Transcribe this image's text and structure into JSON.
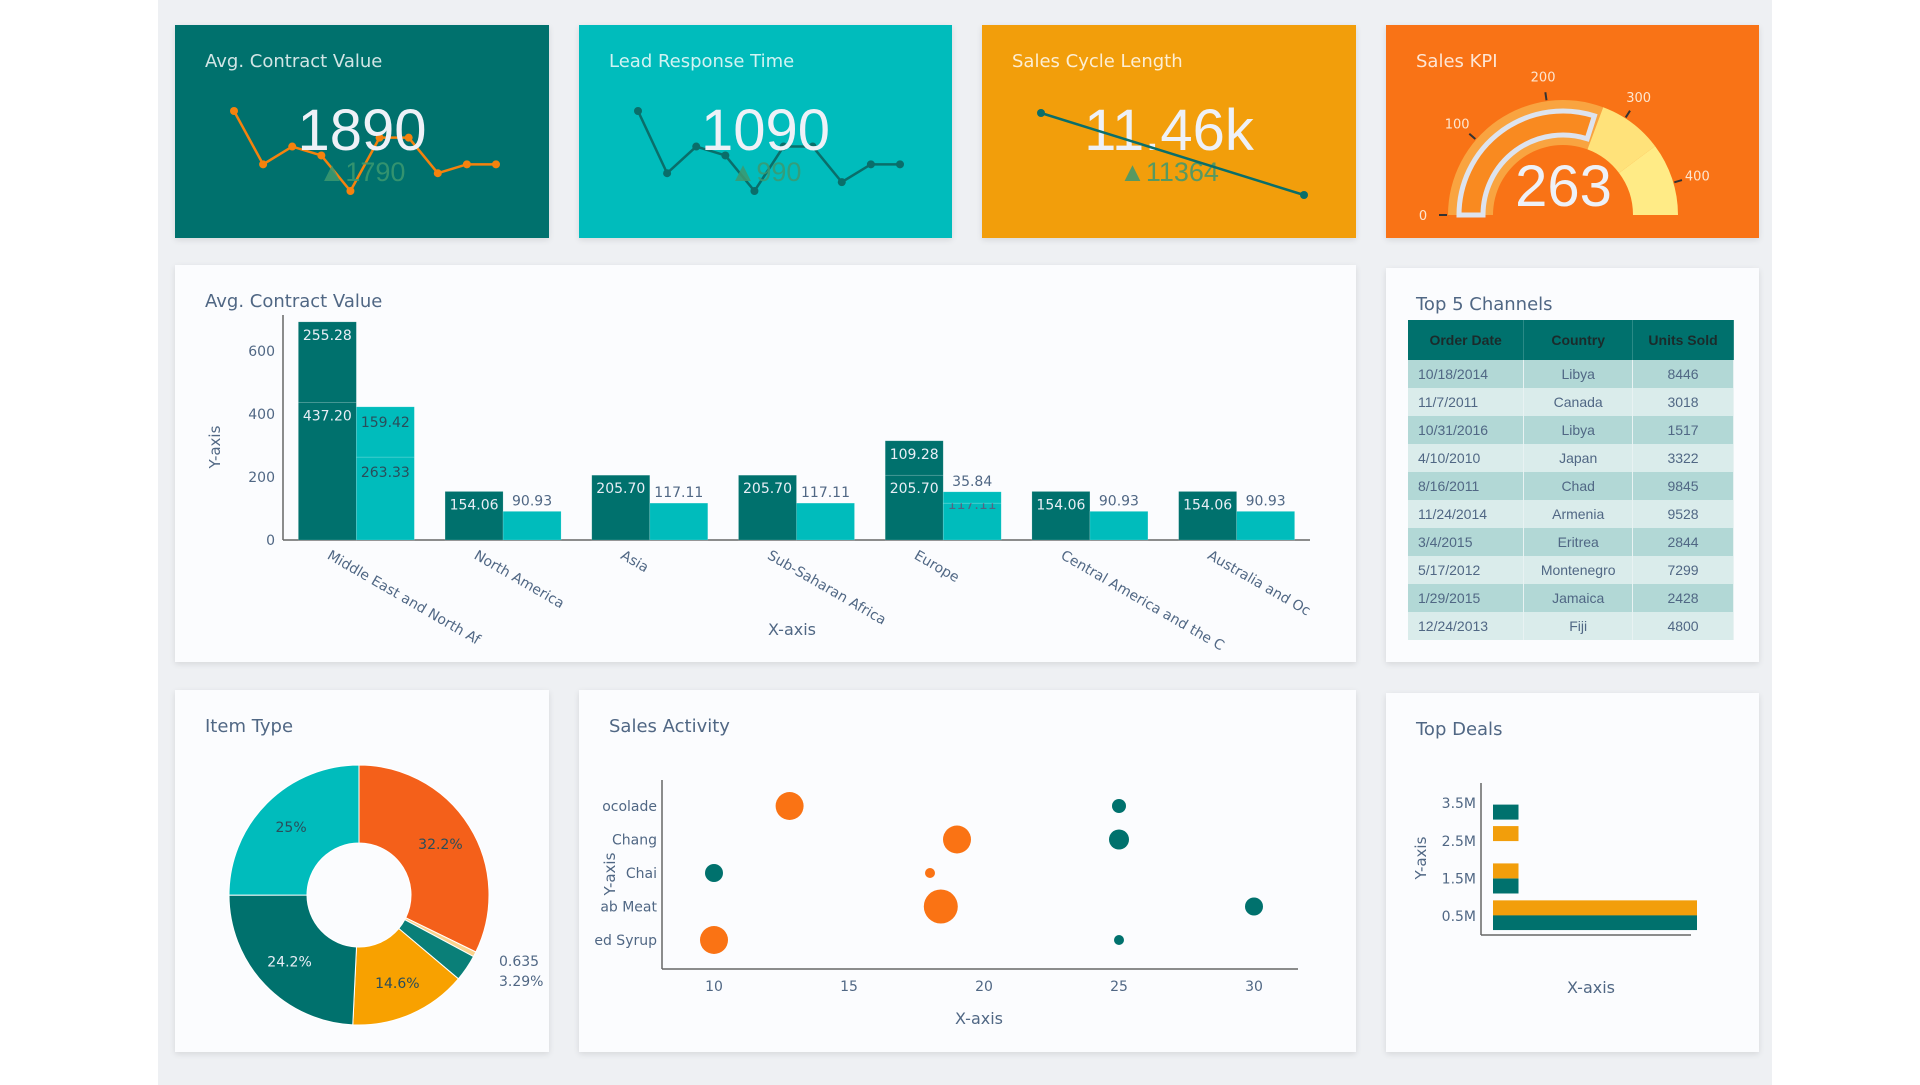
{
  "colors": {
    "teal": "#00716d",
    "cyan": "#00bcbc",
    "amber": "#f29e0b",
    "orange": "#f97316",
    "axis_text": "#506784",
    "delta": "#3d9970"
  },
  "kpis": [
    {
      "title": "Avg. Contract Value",
      "value": "1890",
      "delta": "▲1790",
      "bg": "#00716d",
      "line_color": "#f5820d",
      "sparkline": [
        9,
        3,
        5,
        4,
        0,
        6,
        6,
        2,
        3,
        3
      ]
    },
    {
      "title": "Lead Response Time",
      "value": "1090",
      "delta": "▲990",
      "bg": "#00bcbc",
      "line_color": "#0a6e6a",
      "sparkline": [
        9,
        2,
        5,
        4,
        0,
        5,
        5,
        1,
        3,
        3
      ]
    },
    {
      "title": "Sales Cycle Length",
      "value": "11.46k",
      "delta": "▲11364",
      "bg": "#f29e0b",
      "line_color": "#0a6e6a",
      "sparkline": [
        11560,
        11364
      ]
    }
  ],
  "gauge": {
    "title": "Sales KPI",
    "value": "263",
    "value_num": 263,
    "range": [
      0,
      440
    ],
    "ticks": [
      "0",
      "100",
      "200",
      "300",
      "400"
    ],
    "steps": [
      {
        "range": [
          0,
          270
        ],
        "color": "#f9a440"
      },
      {
        "range": [
          270,
          350
        ],
        "color": "#ffe27a"
      },
      {
        "range": [
          350,
          440
        ],
        "color": "#ffeb86"
      }
    ],
    "bg": "#f97316"
  },
  "bar_chart": {
    "title": "Avg. Contract Value"
  },
  "table": {
    "title": "Top 5 Channels",
    "columns": [
      "Order Date",
      "Country",
      "Units Sold"
    ],
    "rows": [
      [
        "10/18/2014",
        "Libya",
        "8446"
      ],
      [
        "11/7/2011",
        "Canada",
        "3018"
      ],
      [
        "10/31/2016",
        "Libya",
        "1517"
      ],
      [
        "4/10/2010",
        "Japan",
        "3322"
      ],
      [
        "8/16/2011",
        "Chad",
        "9845"
      ],
      [
        "11/24/2014",
        "Armenia",
        "9528"
      ],
      [
        "3/4/2015",
        "Eritrea",
        "2844"
      ],
      [
        "5/17/2012",
        "Montenegro",
        "7299"
      ],
      [
        "1/29/2015",
        "Jamaica",
        "2428"
      ],
      [
        "12/24/2013",
        "Fiji",
        "4800"
      ]
    ]
  },
  "pie": {
    "title": "Item Type"
  },
  "scatter": {
    "title": "Sales Activity"
  },
  "deals": {
    "title": "Top Deals"
  },
  "chart_data": [
    {
      "type": "bar",
      "title": "Avg. Contract Value",
      "xlabel": "X-axis",
      "ylabel": "Y-axis",
      "ylim": [
        0,
        700
      ],
      "yticks": [
        0,
        200,
        400,
        600
      ],
      "barmode": "stack-grouped",
      "categories": [
        "Middle East and North Af",
        "North America",
        "Asia",
        "Sub-Saharan Africa",
        "Europe",
        "Central America and the C",
        "Australia and Oc"
      ],
      "series": [
        {
          "color": "#00716d",
          "values": [
            [
              437.2,
              255.28
            ],
            [
              154.06
            ],
            [
              205.7
            ],
            [
              205.7
            ],
            [
              205.7,
              109.28
            ],
            [
              154.06
            ],
            [
              154.06
            ]
          ]
        },
        {
          "color": "#00bcbc",
          "values": [
            [
              263.33,
              159.42
            ],
            [
              90.93
            ],
            [
              117.11
            ],
            [
              117.11
            ],
            [
              117.11,
              35.84
            ],
            [
              90.93
            ],
            [
              90.93
            ]
          ]
        }
      ]
    },
    {
      "type": "pie",
      "title": "Item Type",
      "hole": true,
      "slices": [
        {
          "label": "32.2%",
          "value": 32.2,
          "color": "#f4601a"
        },
        {
          "label": "0.635",
          "value": 0.635,
          "color": "#fbd38d"
        },
        {
          "label": "3.29%",
          "value": 3.29,
          "color": "#0a7f78"
        },
        {
          "label": "14.6%",
          "value": 14.6,
          "color": "#f8a100"
        },
        {
          "label": "24.2%",
          "value": 24.2,
          "color": "#00716d"
        },
        {
          "label": "25%",
          "value": 25,
          "color": "#00bcbc"
        }
      ]
    },
    {
      "type": "scatter",
      "title": "Sales Activity",
      "xlabel": "X-axis",
      "ylabel": "Y-axis",
      "xlim": [
        8,
        31.5
      ],
      "xticks": [
        10,
        15,
        20,
        25,
        30
      ],
      "categories": [
        "ocolade",
        "Chang",
        "Chai",
        "ab Meat",
        "ed Syrup"
      ],
      "series": [
        {
          "color": "#fa7314",
          "points": [
            {
              "x": 12.8,
              "y": "ocolade",
              "size": 14
            },
            {
              "x": 19,
              "y": "Chang",
              "size": 14
            },
            {
              "x": 18,
              "y": "Chai",
              "size": 5
            },
            {
              "x": 18.4,
              "y": "ab Meat",
              "size": 17
            },
            {
              "x": 10,
              "y": "ed Syrup",
              "size": 14
            }
          ]
        },
        {
          "color": "#00716d",
          "points": [
            {
              "x": 25,
              "y": "ocolade",
              "size": 7
            },
            {
              "x": 25,
              "y": "Chang",
              "size": 10
            },
            {
              "x": 10,
              "y": "Chai",
              "size": 9
            },
            {
              "x": 30,
              "y": "ab Meat",
              "size": 9
            },
            {
              "x": 25,
              "y": "ed Syrup",
              "size": 5
            }
          ]
        }
      ]
    },
    {
      "type": "bar",
      "orientation": "horizontal",
      "title": "Top Deals",
      "xlabel": "X-axis",
      "ylabel": "Y-axis",
      "ylim": [
        0,
        3.8
      ],
      "yticks": [
        "0.5M",
        "1.5M",
        "2.5M",
        "3.5M"
      ],
      "bars": [
        {
          "y": 0.33,
          "x": 8,
          "color": "#00716d"
        },
        {
          "y": 0.72,
          "x": 8,
          "color": "#f29e0b"
        },
        {
          "y": 1.3,
          "x": 1,
          "color": "#00716d"
        },
        {
          "y": 1.7,
          "x": 1,
          "color": "#f29e0b"
        },
        {
          "y": 2.69,
          "x": 1,
          "color": "#f29e0b"
        },
        {
          "y": 3.26,
          "x": 1,
          "color": "#00716d"
        }
      ]
    }
  ]
}
